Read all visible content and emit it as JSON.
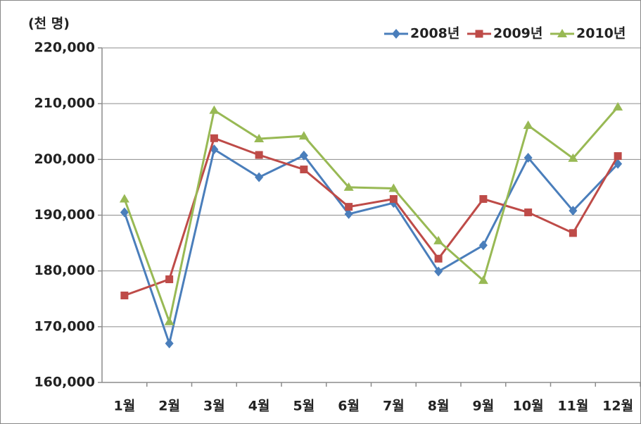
{
  "chart_data": {
    "type": "line",
    "y_unit": "(천 명)",
    "categories": [
      "1월",
      "2월",
      "3월",
      "4월",
      "5월",
      "6월",
      "7월",
      "8월",
      "9월",
      "10월",
      "11월",
      "12월"
    ],
    "series": [
      {
        "name": "2008년",
        "color": "#4a7ebb",
        "marker": "diamond",
        "values": [
          190500,
          167000,
          201800,
          196800,
          200700,
          190200,
          192200,
          179900,
          184600,
          200300,
          190800,
          199200
        ]
      },
      {
        "name": "2009년",
        "color": "#be4b48",
        "marker": "square",
        "values": [
          175600,
          178500,
          203800,
          200800,
          198200,
          191500,
          192900,
          182200,
          192900,
          190500,
          186800,
          200600
        ]
      },
      {
        "name": "2010년",
        "color": "#98b954",
        "marker": "triangle",
        "values": [
          192900,
          170900,
          208800,
          203700,
          204200,
          195000,
          194800,
          185400,
          178300,
          206100,
          200200,
          209400
        ]
      }
    ],
    "ylim": [
      160000,
      220000
    ],
    "yticks": [
      {
        "value": 160000,
        "label": "160,000"
      },
      {
        "value": 170000,
        "label": "170,000"
      },
      {
        "value": 180000,
        "label": "180,000"
      },
      {
        "value": 190000,
        "label": "190,000"
      },
      {
        "value": 200000,
        "label": "200,000"
      },
      {
        "value": 210000,
        "label": "210,000"
      },
      {
        "value": 220000,
        "label": "220,000"
      }
    ],
    "grid": true,
    "legend": "top-right"
  }
}
